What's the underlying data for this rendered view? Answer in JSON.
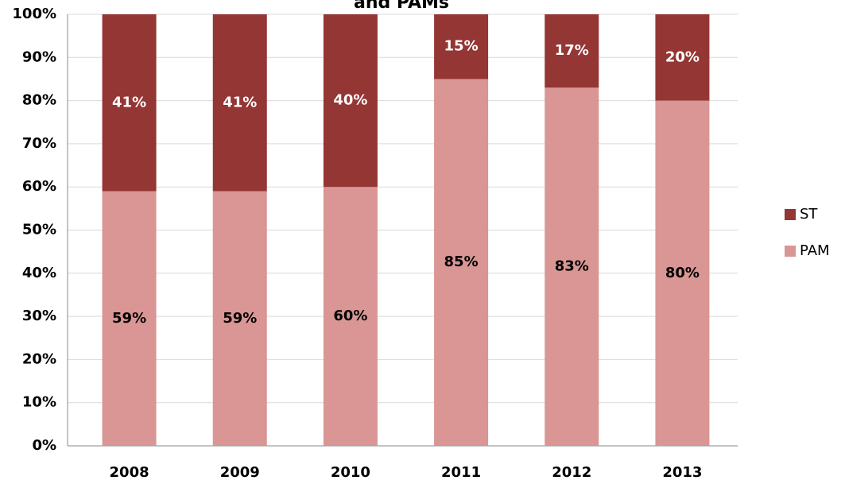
{
  "chart_data": {
    "type": "stacked_bar",
    "title": "and PAMs",
    "categories": [
      "2008",
      "2009",
      "2010",
      "2011",
      "2012",
      "2013"
    ],
    "series": [
      {
        "name": "PAM",
        "color": "#d99694",
        "label_color": "#000000",
        "values": [
          59,
          59,
          60,
          85,
          83,
          80
        ],
        "value_labels": [
          "59%",
          "59%",
          "60%",
          "85%",
          "83%",
          "80%"
        ]
      },
      {
        "name": "ST",
        "color": "#943634",
        "label_color": "#ffffff",
        "values": [
          41,
          41,
          40,
          15,
          17,
          20
        ],
        "value_labels": [
          "41%",
          "41%",
          "40%",
          "15%",
          "17%",
          "20%"
        ]
      }
    ],
    "ylim": [
      0,
      100
    ],
    "yticks": [
      {
        "value": 0,
        "label": "0%"
      },
      {
        "value": 10,
        "label": "10%"
      },
      {
        "value": 20,
        "label": "20%"
      },
      {
        "value": 30,
        "label": "30%"
      },
      {
        "value": 40,
        "label": "40%"
      },
      {
        "value": 50,
        "label": "50%"
      },
      {
        "value": 60,
        "label": "60%"
      },
      {
        "value": 70,
        "label": "70%"
      },
      {
        "value": 80,
        "label": "80%"
      },
      {
        "value": 90,
        "label": "90%"
      },
      {
        "value": 100,
        "label": "100%"
      }
    ],
    "grid": true,
    "legend": "right"
  }
}
